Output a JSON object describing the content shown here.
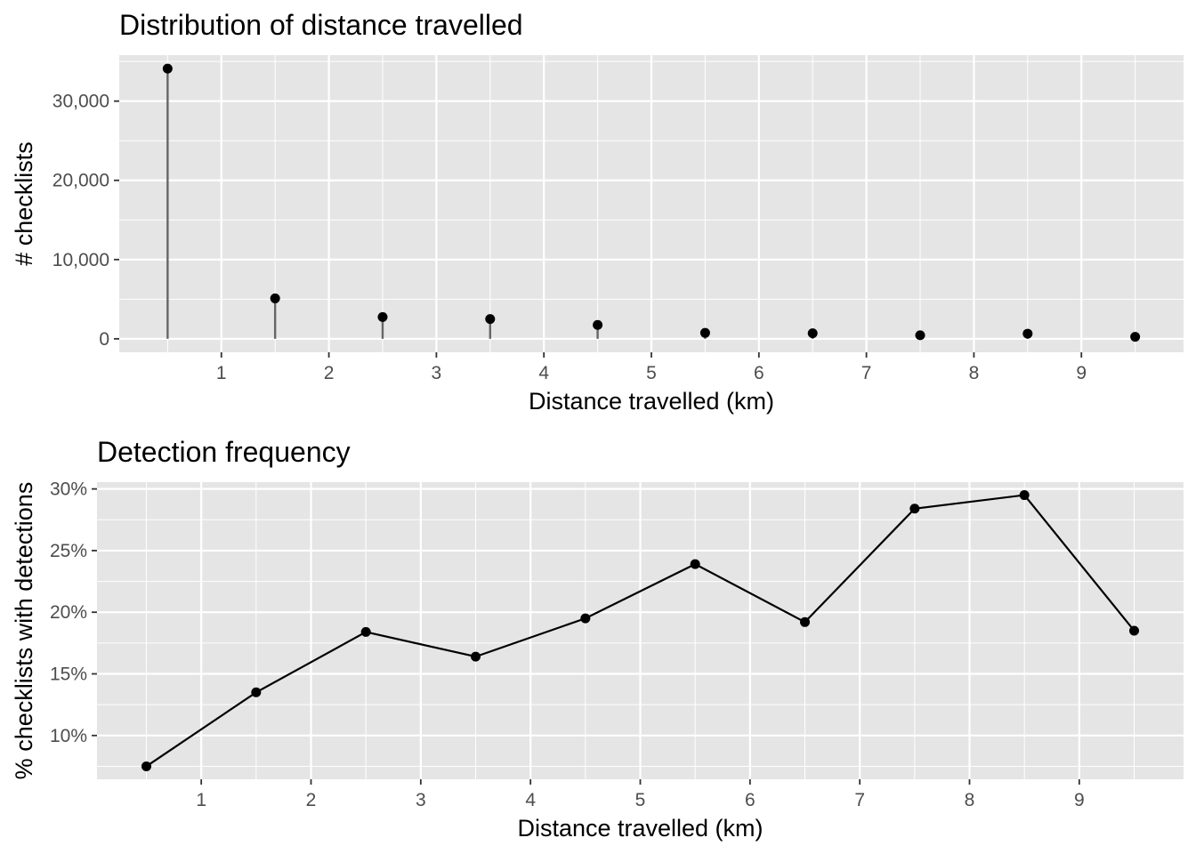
{
  "chart_data": [
    {
      "type": "lollipop",
      "title": "Distribution of distance travelled",
      "xlabel": "Distance travelled (km)",
      "ylabel": "# checklists",
      "x": [
        0.5,
        1.5,
        2.5,
        3.5,
        4.5,
        5.5,
        6.5,
        7.5,
        8.5,
        9.5
      ],
      "values": [
        34100,
        5100,
        2750,
        2500,
        1750,
        750,
        700,
        450,
        650,
        250
      ],
      "xlim": [
        0.05,
        9.95
      ],
      "ylim": [
        -1700,
        35800
      ],
      "x_ticks": [
        1,
        2,
        3,
        4,
        5,
        6,
        7,
        8,
        9
      ],
      "x_tick_labels": [
        "1",
        "2",
        "3",
        "4",
        "5",
        "6",
        "7",
        "8",
        "9"
      ],
      "y_ticks": [
        0,
        10000,
        20000,
        30000
      ],
      "y_tick_labels": [
        "0",
        "10,000",
        "20,000",
        "30,000"
      ],
      "grid": true,
      "legend": "none",
      "colors": {
        "panel": "#e5e5e5",
        "grid": "#ffffff",
        "stem": "#666666",
        "point": "#000000"
      }
    },
    {
      "type": "line",
      "title": "Detection frequency",
      "xlabel": "Distance travelled (km)",
      "ylabel": "% checklists with detections",
      "x": [
        0.5,
        1.5,
        2.5,
        3.5,
        4.5,
        5.5,
        6.5,
        7.5,
        8.5,
        9.5
      ],
      "values": [
        0.075,
        0.135,
        0.184,
        0.164,
        0.195,
        0.239,
        0.192,
        0.284,
        0.295,
        0.185
      ],
      "xlim": [
        0.05,
        9.95
      ],
      "ylim": [
        0.0645,
        0.3055
      ],
      "x_ticks": [
        1,
        2,
        3,
        4,
        5,
        6,
        7,
        8,
        9
      ],
      "x_tick_labels": [
        "1",
        "2",
        "3",
        "4",
        "5",
        "6",
        "7",
        "8",
        "9"
      ],
      "y_ticks": [
        0.1,
        0.15,
        0.2,
        0.25,
        0.3
      ],
      "y_tick_labels": [
        "10%",
        "15%",
        "20%",
        "25%",
        "30%"
      ],
      "grid": true,
      "legend": "none",
      "colors": {
        "panel": "#e5e5e5",
        "grid": "#ffffff",
        "line": "#000000",
        "point": "#000000"
      }
    }
  ]
}
